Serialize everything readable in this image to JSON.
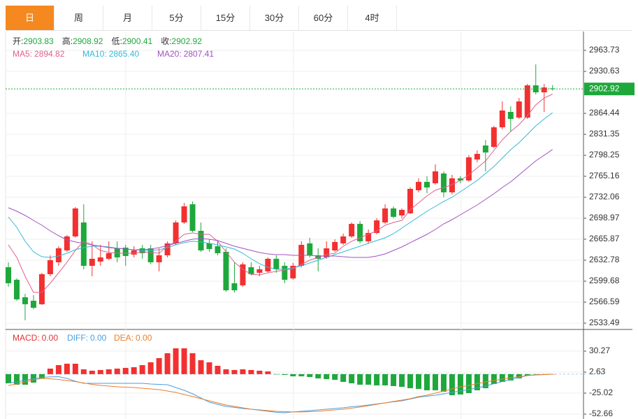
{
  "tabs": [
    "日",
    "周",
    "月",
    "5分",
    "15分",
    "30分",
    "60分",
    "4时"
  ],
  "active_tab": 0,
  "chart_data": [
    {
      "type": "candlestick",
      "ohlc_labels": [
        "开:",
        "高:",
        "低:",
        "收:"
      ],
      "up_color": "#f23030",
      "down_color": "#1ea83c",
      "open": [
        2621.7,
        2601.9,
        2574.3,
        2568.8,
        2563.3,
        2610.7,
        2629.5,
        2648.2,
        2670.3,
        2692.3,
        2623.9,
        2630.6,
        2635.0,
        2651.5,
        2652.6,
        2641.6,
        2651.5,
        2651.5,
        2629.5,
        2640.5,
        2659.3,
        2692.3,
        2721.0,
        2679.1,
        2659.3,
        2654.8,
        2646.0,
        2596.4,
        2593.1,
        2621.7,
        2612.9,
        2615.1,
        2635.0,
        2623.9,
        2604.1,
        2623.9,
        2659.3,
        2640.5,
        2637.2,
        2648.2,
        2659.3,
        2670.3,
        2690.1,
        2662.6,
        2675.8,
        2692.3,
        2714.4,
        2703.4,
        2706.7,
        2743.1,
        2756.3,
        2754.1,
        2769.6,
        2739.8,
        2761.9,
        2758.5,
        2791.6,
        2813.7,
        2811.5,
        2842.4,
        2866.7,
        2857.8,
        2857.8,
        2908.6,
        2897.6,
        2903.83
      ],
      "high": [
        2629.5,
        2604.1,
        2579.8,
        2577.6,
        2612.9,
        2640.5,
        2654.8,
        2672.5,
        2716.6,
        2721.0,
        2662.6,
        2657.0,
        2662.6,
        2662.6,
        2657.0,
        2654.8,
        2657.0,
        2657.0,
        2651.5,
        2662.6,
        2695.6,
        2723.2,
        2725.4,
        2692.3,
        2665.9,
        2662.6,
        2651.5,
        2629.5,
        2629.5,
        2629.5,
        2623.9,
        2637.2,
        2640.5,
        2629.5,
        2628.4,
        2662.6,
        2668.1,
        2651.5,
        2662.6,
        2665.9,
        2674.7,
        2692.3,
        2694.5,
        2681.3,
        2698.9,
        2721.0,
        2717.7,
        2714.4,
        2747.5,
        2761.9,
        2765.2,
        2783.9,
        2772.9,
        2767.4,
        2765.2,
        2798.3,
        2806.0,
        2822.5,
        2844.6,
        2883.2,
        2875.5,
        2888.7,
        2910.8,
        2941.7,
        2910.8,
        2908.92
      ],
      "low": [
        2590.8,
        2568.8,
        2537.9,
        2555.5,
        2562.2,
        2607.4,
        2623.9,
        2646.0,
        2668.1,
        2618.4,
        2607.4,
        2623.9,
        2632.8,
        2629.5,
        2623.9,
        2637.2,
        2635.0,
        2626.2,
        2615.1,
        2637.2,
        2657.0,
        2690.1,
        2676.9,
        2646.0,
        2646.0,
        2640.5,
        2583.1,
        2582.0,
        2590.8,
        2608.5,
        2607.4,
        2612.9,
        2612.9,
        2596.4,
        2601.9,
        2621.7,
        2637.2,
        2615.1,
        2635.0,
        2646.0,
        2657.0,
        2668.1,
        2659.3,
        2659.3,
        2673.6,
        2690.1,
        2699.0,
        2699.0,
        2705.6,
        2739.8,
        2738.7,
        2751.9,
        2732.1,
        2736.5,
        2754.1,
        2756.3,
        2787.2,
        2772.9,
        2809.3,
        2839.1,
        2835.8,
        2855.6,
        2855.6,
        2894.2,
        2866.7,
        2900.41
      ],
      "close": [
        2596.4,
        2571.0,
        2563.3,
        2557.7,
        2610.7,
        2632.8,
        2651.5,
        2670.3,
        2714.4,
        2623.9,
        2635.0,
        2637.2,
        2643.8,
        2637.2,
        2639.4,
        2648.2,
        2643.8,
        2629.5,
        2640.5,
        2659.3,
        2692.3,
        2717.7,
        2679.1,
        2648.2,
        2650.4,
        2643.8,
        2585.3,
        2585.3,
        2626.2,
        2610.7,
        2618.4,
        2635.0,
        2618.4,
        2601.9,
        2623.9,
        2657.0,
        2640.5,
        2635.0,
        2651.5,
        2661.5,
        2670.3,
        2690.1,
        2662.6,
        2675.8,
        2695.6,
        2714.4,
        2701.2,
        2712.2,
        2745.3,
        2756.3,
        2747.5,
        2772.9,
        2739.8,
        2761.9,
        2758.5,
        2795.0,
        2800.5,
        2802.7,
        2842.4,
        2868.9,
        2855.6,
        2883.2,
        2908.6,
        2897.6,
        2905.3,
        2902.92
      ],
      "series": [
        {
          "name": "MA5:",
          "color": "#e2608c",
          "last_label": "2894.82",
          "values": [
            2657.0,
            2637.2,
            2607.4,
            2582.0,
            2582.0,
            2596.4,
            2612.9,
            2629.5,
            2648.2,
            2662.6,
            2657.0,
            2648.2,
            2644.9,
            2643.8,
            2643.8,
            2643.8,
            2646.0,
            2644.9,
            2643.8,
            2654.8,
            2662.6,
            2673.6,
            2675.8,
            2673.6,
            2673.6,
            2662.6,
            2646.0,
            2629.5,
            2618.4,
            2610.7,
            2609.6,
            2612.9,
            2615.1,
            2617.3,
            2619.5,
            2626.2,
            2632.8,
            2637.2,
            2641.6,
            2643.8,
            2654.8,
            2662.6,
            2668.1,
            2673.6,
            2679.1,
            2687.9,
            2692.3,
            2695.6,
            2712.2,
            2723.2,
            2734.3,
            2743.1,
            2747.5,
            2751.9,
            2758.5,
            2767.4,
            2778.4,
            2789.4,
            2806.0,
            2822.5,
            2835.8,
            2846.8,
            2861.2,
            2877.7,
            2888.7,
            2894.82
          ]
        },
        {
          "name": "MA10:",
          "color": "#35b8d8",
          "last_label": "2865.40",
          "values": [
            2701.2,
            2684.6,
            2662.6,
            2646.0,
            2638.3,
            2637.2,
            2639.4,
            2643.8,
            2649.3,
            2652.6,
            2654.8,
            2654.8,
            2653.7,
            2651.5,
            2650.4,
            2649.3,
            2648.2,
            2648.2,
            2649.3,
            2652.6,
            2657.0,
            2660.4,
            2662.6,
            2661.5,
            2659.3,
            2657.0,
            2653.7,
            2650.4,
            2643.8,
            2635.0,
            2627.3,
            2621.7,
            2618.4,
            2618.4,
            2620.6,
            2623.9,
            2628.4,
            2632.8,
            2637.2,
            2641.6,
            2646.0,
            2650.4,
            2654.8,
            2659.3,
            2663.7,
            2668.1,
            2674.7,
            2683.5,
            2692.3,
            2701.2,
            2710.0,
            2717.7,
            2725.4,
            2732.1,
            2740.9,
            2749.7,
            2758.5,
            2769.6,
            2780.6,
            2793.9,
            2807.1,
            2818.1,
            2831.4,
            2844.6,
            2855.6,
            2865.4
          ]
        },
        {
          "name": "MA20:",
          "color": "#a450c2",
          "last_label": "2807.41",
          "values": [
            2715.5,
            2710.0,
            2703.4,
            2695.6,
            2687.9,
            2679.1,
            2671.4,
            2664.8,
            2661.5,
            2659.3,
            2657.0,
            2654.8,
            2652.6,
            2651.5,
            2650.4,
            2649.3,
            2649.3,
            2650.4,
            2652.6,
            2655.9,
            2659.3,
            2662.6,
            2665.9,
            2667.0,
            2665.9,
            2663.7,
            2659.3,
            2654.8,
            2651.5,
            2648.2,
            2644.9,
            2642.7,
            2641.6,
            2641.6,
            2640.5,
            2640.5,
            2640.5,
            2639.4,
            2639.4,
            2639.4,
            2638.3,
            2637.2,
            2637.2,
            2637.2,
            2639.4,
            2642.7,
            2648.2,
            2653.7,
            2660.4,
            2667.0,
            2673.6,
            2681.3,
            2690.1,
            2696.8,
            2704.5,
            2712.2,
            2719.9,
            2728.7,
            2737.6,
            2747.5,
            2756.3,
            2767.4,
            2778.4,
            2789.4,
            2798.3,
            2807.41
          ]
        }
      ],
      "ylim": [
        2524.6,
        2993.6
      ],
      "yticks": [
        2533.49,
        2566.59,
        2599.68,
        2632.78,
        2665.87,
        2698.97,
        2732.06,
        2765.16,
        2798.25,
        2831.35,
        2864.44,
        2930.63,
        2963.73
      ],
      "grid": true
    },
    {
      "type": "macd",
      "histogram": {
        "name": "MACD:",
        "color": "#e03434",
        "last_label": "0.00",
        "values": [
          -12.07,
          -13.91,
          -13.91,
          -11.15,
          -5.62,
          7.28,
          11.88,
          13.73,
          13.73,
          6.36,
          4.51,
          5.44,
          6.36,
          7.28,
          8.2,
          9.12,
          11.88,
          15.57,
          21.1,
          27.55,
          34.0,
          34.0,
          27.55,
          18.34,
          15.57,
          10.96,
          6.36,
          5.44,
          6.36,
          5.44,
          4.51,
          3.59,
          -0.09,
          -1.01,
          -2.86,
          -2.86,
          -3.78,
          -5.62,
          -6.54,
          -7.46,
          -10.23,
          -12.07,
          -13.91,
          -13.91,
          -14.83,
          -14.83,
          -15.75,
          -16.68,
          -18.52,
          -19.44,
          -21.28,
          -21.28,
          -23.13,
          -27.73,
          -26.81,
          -24.97,
          -21.28,
          -18.52,
          -12.99,
          -10.23,
          -8.39,
          -5.62,
          -1.93,
          -0.09,
          -0.09,
          0
        ]
      },
      "series": [
        {
          "name": "DIFF:",
          "color": "#4a9ee0",
          "last_label": "0.00",
          "values": [
            -11.61,
            -10.23,
            -7.92,
            -6.08,
            -4.24,
            -3.59,
            -3.32,
            -5.62,
            -9.31,
            -12.07,
            -12.07,
            -12.07,
            -12.07,
            -12.07,
            -12.07,
            -12.07,
            -12.07,
            -12.99,
            -13.45,
            -13.91,
            -17.6,
            -21.28,
            -25.89,
            -31.42,
            -36.94,
            -39.71,
            -42.47,
            -43.85,
            -45.24,
            -46.16,
            -47.54,
            -48.92,
            -50.3,
            -50.77,
            -49.84,
            -48.92,
            -48.0,
            -47.08,
            -46.16,
            -45.24,
            -44.32,
            -42.93,
            -42.01,
            -40.63,
            -39.25,
            -37.87,
            -36.48,
            -35.1,
            -32.8,
            -30.49,
            -29.11,
            -27.73,
            -25.89,
            -24.05,
            -22.2,
            -20.36,
            -18.06,
            -15.75,
            -12.53,
            -9.77,
            -7.0,
            -4.24,
            -1.93,
            -1.01,
            -0.55,
            0
          ]
        },
        {
          "name": "DEA:",
          "color": "#f07c28",
          "last_label": "0.00",
          "values": [
            -14.83,
            -12.99,
            -10.23,
            -7.46,
            -5.62,
            -6.08,
            -7.0,
            -8.39,
            -9.77,
            -11.61,
            -13.45,
            -14.83,
            -15.75,
            -16.68,
            -17.14,
            -17.6,
            -18.52,
            -19.44,
            -20.36,
            -22.2,
            -24.05,
            -26.81,
            -29.57,
            -32.34,
            -35.1,
            -37.87,
            -40.63,
            -42.47,
            -44.32,
            -46.16,
            -47.08,
            -48.0,
            -48.92,
            -49.38,
            -49.84,
            -49.84,
            -49.38,
            -48.92,
            -48.0,
            -47.08,
            -46.16,
            -44.78,
            -43.39,
            -41.55,
            -39.71,
            -37.87,
            -36.02,
            -34.18,
            -32.34,
            -29.57,
            -27.73,
            -24.97,
            -22.2,
            -19.44,
            -16.68,
            -14.83,
            -12.53,
            -10.23,
            -8.39,
            -6.54,
            -4.7,
            -3.32,
            -1.93,
            -1.01,
            -0.55,
            0
          ]
        }
      ],
      "ylim": [
        -59.1,
        56.99
      ],
      "yticks": [
        30.27,
        2.63,
        -25.02,
        -52.66
      ]
    }
  ]
}
